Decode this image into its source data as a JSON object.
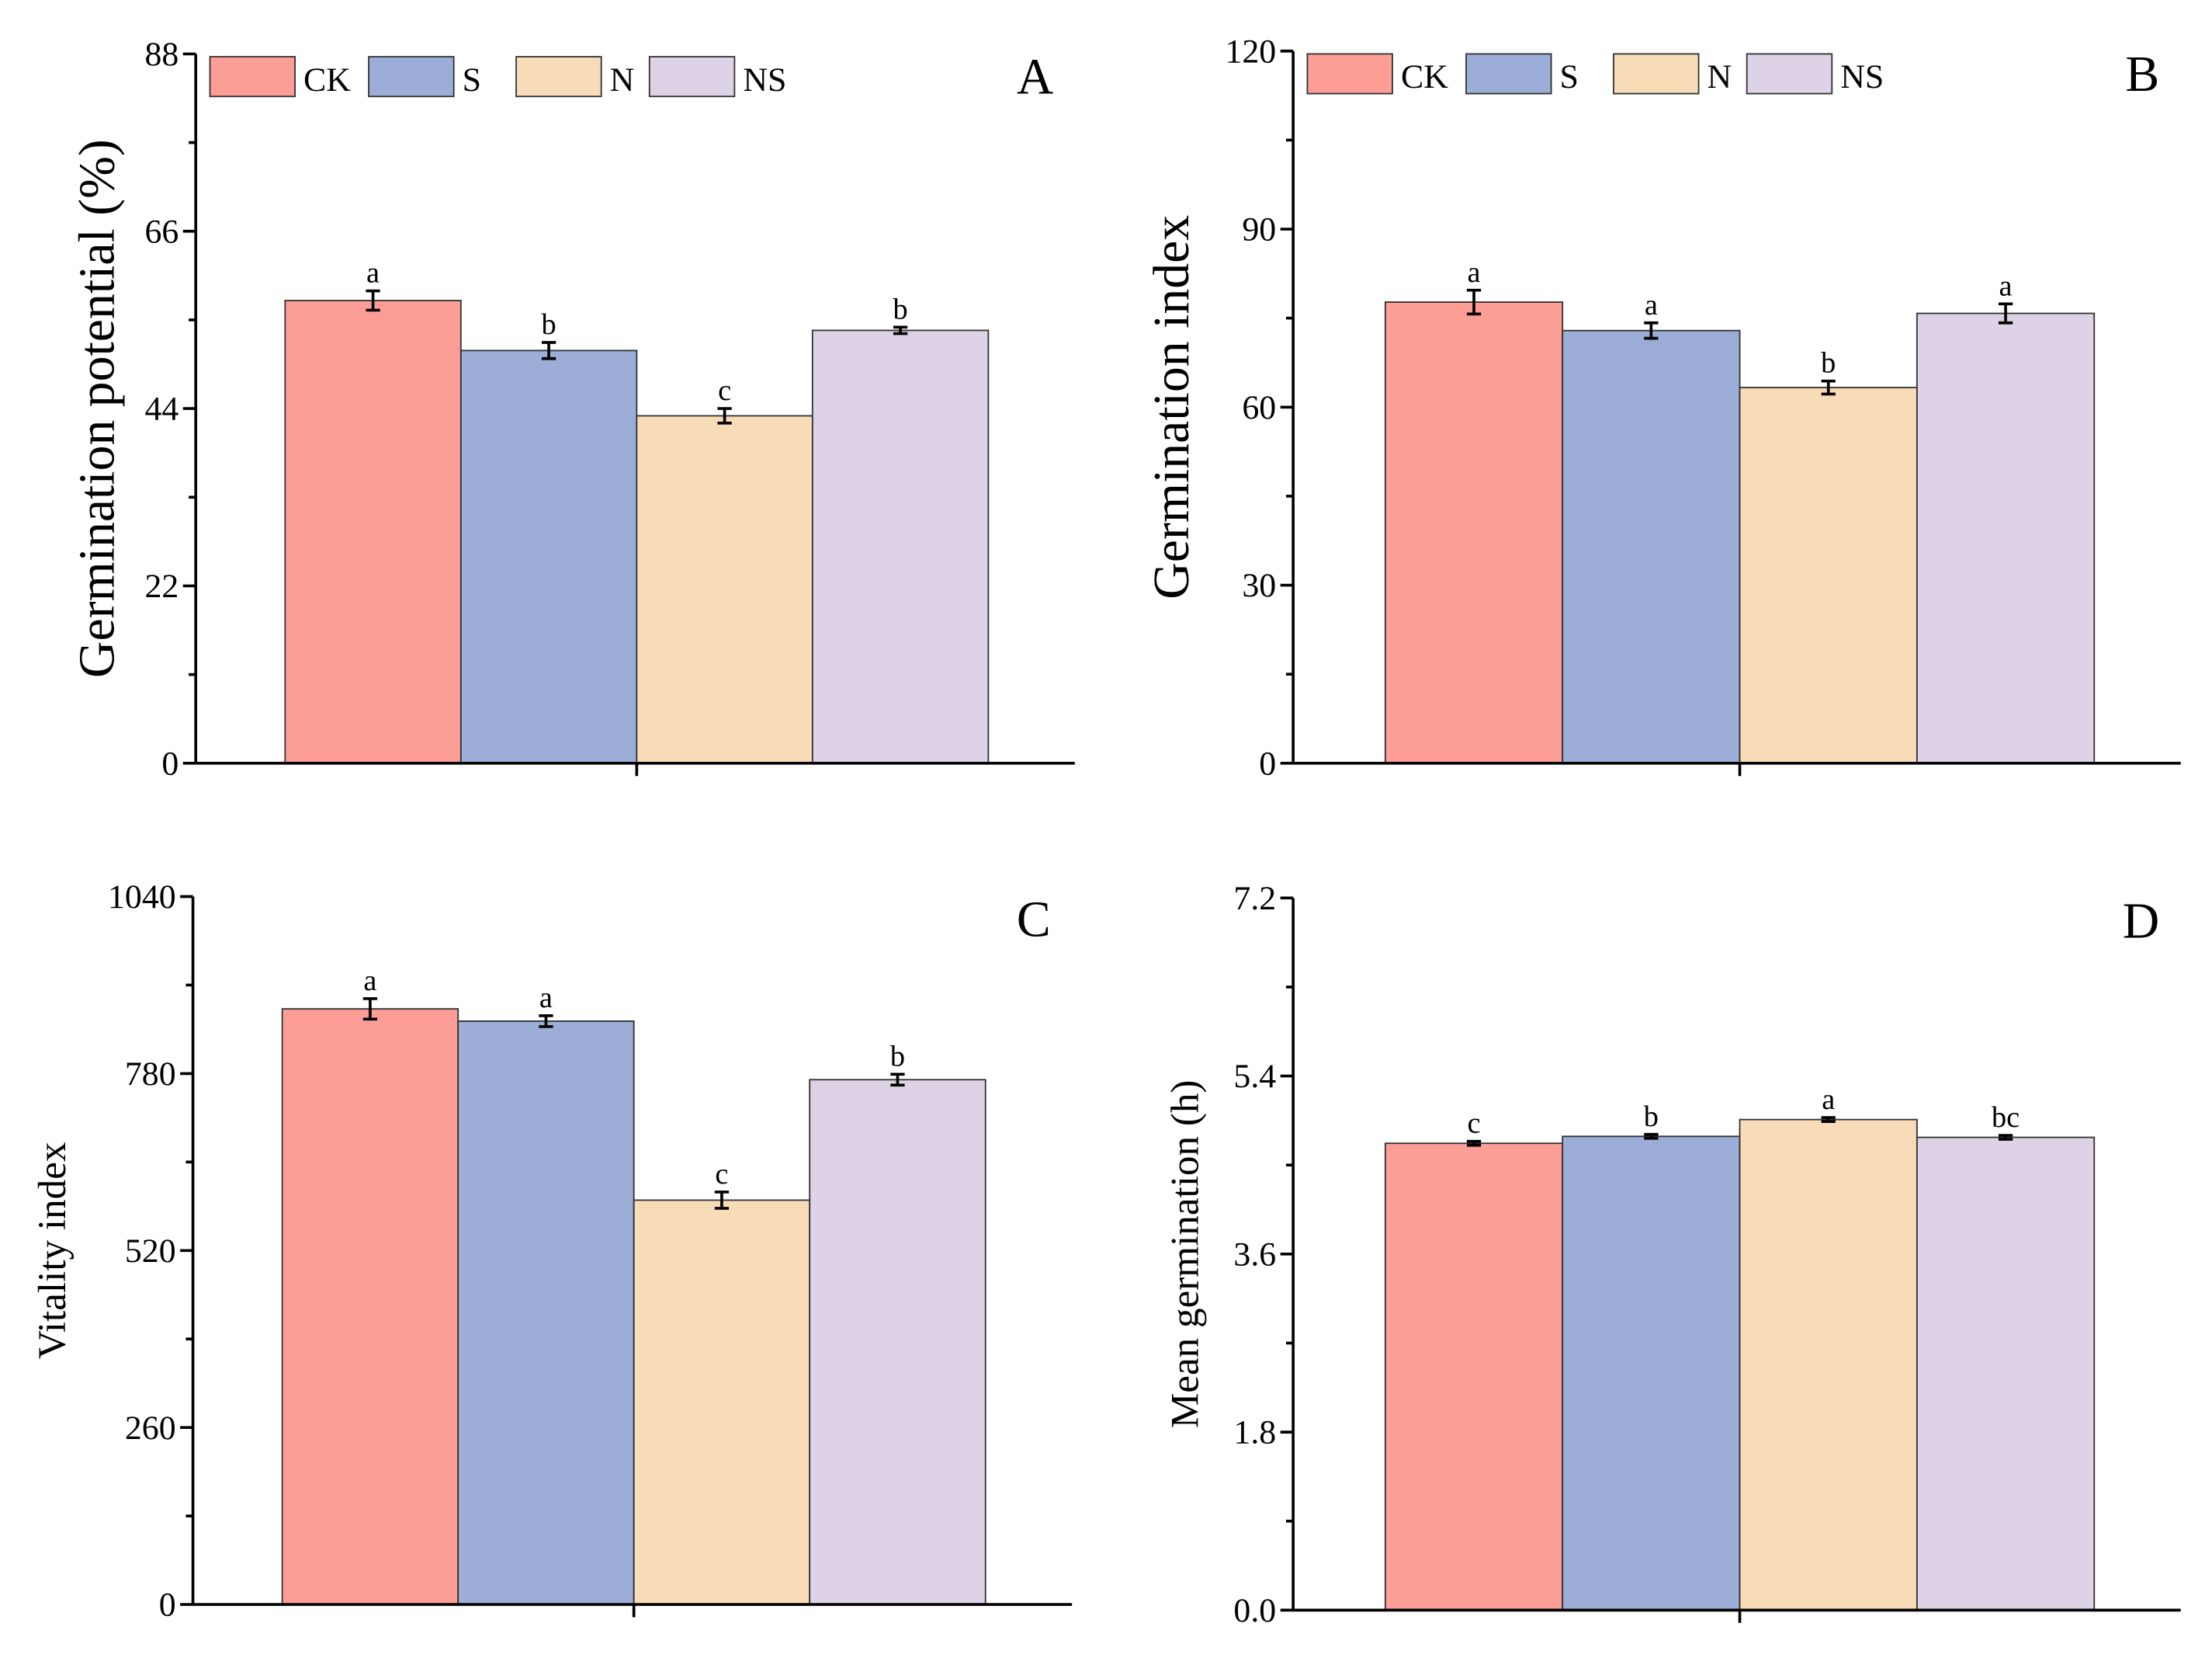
{
  "chart_data": [
    {
      "type": "bar",
      "panel_label": "A",
      "ylabel": "Germination potential (%)",
      "xlabel": "",
      "ylim": [
        0,
        88
      ],
      "yticks": [
        "0",
        "22",
        "44",
        "66",
        "88"
      ],
      "categories": [
        "CK",
        "S",
        "N",
        "NS"
      ],
      "values": [
        57.4,
        51.2,
        43.1,
        53.7
      ],
      "errors": [
        1.2,
        1.0,
        0.9,
        0.4
      ],
      "significance": [
        "a",
        "b",
        "c",
        "b"
      ],
      "legend": [
        "CK",
        "S",
        "N",
        "NS"
      ],
      "legend_position": "top-left"
    },
    {
      "type": "bar",
      "panel_label": "B",
      "ylabel": "Germination index",
      "xlabel": "",
      "ylim": [
        0,
        120
      ],
      "yticks": [
        "0",
        "30",
        "60",
        "90",
        "120"
      ],
      "categories": [
        "CK",
        "S",
        "N",
        "NS"
      ],
      "values": [
        77.7,
        72.9,
        63.3,
        75.8
      ],
      "errors": [
        2.0,
        1.3,
        1.1,
        1.6
      ],
      "significance": [
        "a",
        "a",
        "b",
        "a"
      ],
      "legend": [
        "CK",
        "S",
        "N",
        "NS"
      ],
      "legend_position": "top-left"
    },
    {
      "type": "bar",
      "panel_label": "C",
      "ylabel": "Vitality index",
      "xlabel": "",
      "ylim": [
        0,
        1040
      ],
      "yticks": [
        "0",
        "260",
        "520",
        "780",
        "1040"
      ],
      "categories": [
        "CK",
        "S",
        "N",
        "NS"
      ],
      "values": [
        875,
        857,
        594,
        771
      ],
      "errors": [
        15,
        8,
        12,
        8
      ],
      "significance": [
        "a",
        "a",
        "c",
        "b"
      ]
    },
    {
      "type": "bar",
      "panel_label": "D",
      "ylabel": "Mean germination (h)",
      "xlabel": "",
      "ylim": [
        0,
        7.2
      ],
      "yticks": [
        "0.0",
        "1.8",
        "3.6",
        "5.4",
        "7.2"
      ],
      "categories": [
        "CK",
        "S",
        "N",
        "NS"
      ],
      "values": [
        4.72,
        4.79,
        4.96,
        4.78
      ],
      "errors": [
        0.02,
        0.02,
        0.02,
        0.02
      ],
      "significance": [
        "c",
        "b",
        "a",
        "bc"
      ]
    }
  ],
  "colors": {
    "CK": "#fc9d96",
    "S": "#9caed8",
    "N": "#f8dcb8",
    "NS": "#ddd2e6"
  }
}
